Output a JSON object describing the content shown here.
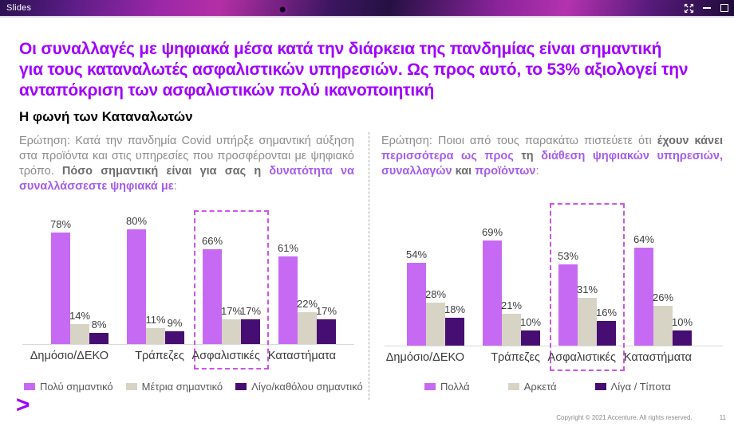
{
  "window": {
    "title": "Slides",
    "controls": {
      "expand": "expand",
      "minimize": "minimize",
      "maximize": "maximize"
    }
  },
  "slide": {
    "heading_lines": [
      "Οι συναλλαγές με ψηφιακά μέσα κατά την διάρκεια της πανδημίας είναι σημαντική",
      "για τους καταναλωτές ασφαλιστικών υπηρεσιών. Ως προς αυτό, το 53% αξιολογεί την",
      "ανταπόκριση των ασφαλιστικών πολύ ικανοποιητική"
    ],
    "subtitle": "Η φωνή των Καταναλωτών"
  },
  "left_panel": {
    "question_segments": [
      {
        "t": "Ερώτηση: Κατά την πανδημία Covid υπήρξε σημαντική αύξηση στα προϊόντα και στις υπηρεσίες που προσφέρονται με ψηφιακό τρόπο. ",
        "s": "n"
      },
      {
        "t": "Πόσο σημαντική είναι για σας η ",
        "s": "b"
      },
      {
        "t": "δυνατότητα να συναλλάσσεστε ψηφιακά με",
        "s": "p"
      },
      {
        "t": ":",
        "s": "n"
      }
    ]
  },
  "right_panel": {
    "question_segments": [
      {
        "t": "Ερώτηση: Ποιοι από τους παρακάτω πιστεύετε ότι ",
        "s": "n"
      },
      {
        "t": "έχουν κάνει ",
        "s": "b"
      },
      {
        "t": "περισσότερα ως προς ",
        "s": "p"
      },
      {
        "t": "τη ",
        "s": "b"
      },
      {
        "t": "διάθεση ψηφιακών υπηρεσιών, συναλλαγών ",
        "s": "p"
      },
      {
        "t": "και ",
        "s": "b"
      },
      {
        "t": "προϊόντων",
        "s": "p"
      },
      {
        "t": ":",
        "s": "n"
      }
    ]
  },
  "chart_data": [
    {
      "type": "bar",
      "title": "Σημαντικότητα ψηφιακών συναλλαγών ανά κλάδο",
      "categories": [
        "Δημόσιο/ΔΕΚΟ",
        "Τράπεζες",
        "Ασφαλιστικές",
        "Καταστήματα"
      ],
      "series": [
        {
          "name": "Πολύ σημαντικό",
          "values": [
            78,
            80,
            66,
            61
          ]
        },
        {
          "name": "Μέτρια σημαντικό",
          "values": [
            14,
            11,
            17,
            22
          ]
        },
        {
          "name": "Λίγο/καθόλου σημαντικό",
          "values": [
            8,
            9,
            17,
            17
          ]
        }
      ],
      "unit": "%",
      "ylim": [
        0,
        100
      ],
      "grid": false,
      "value_labels": true,
      "legend_position": "bottom",
      "highlight_category": "Ασφαλιστικές"
    },
    {
      "type": "bar",
      "title": "Ποιοι έχουν κάνει περισσότερα στη διάθεση ψηφιακών υπηρεσιών",
      "categories": [
        "Δημόσιο/ΔΕΚΟ",
        "Τράπεζες",
        "Ασφαλιστικές",
        "Καταστήματα"
      ],
      "series": [
        {
          "name": "Πολλά",
          "values": [
            54,
            69,
            53,
            64
          ]
        },
        {
          "name": "Αρκετά",
          "values": [
            28,
            21,
            31,
            26
          ]
        },
        {
          "name": "Λίγα / Τίποτα",
          "values": [
            18,
            10,
            16,
            10
          ]
        }
      ],
      "unit": "%",
      "ylim": [
        0,
        100
      ],
      "grid": false,
      "value_labels": true,
      "legend_position": "bottom",
      "highlight_category": "Ασφαλιστικές"
    }
  ],
  "footer": {
    "logo_glyph": ">",
    "copyright": "Copyright © 2021 Accenture. All rights reserved.",
    "page_number": "11"
  },
  "colors": {
    "accent_purple": "#a100ff",
    "bar_primary": "#c76af3",
    "bar_secondary": "#d8d4c5",
    "bar_tertiary": "#460d72",
    "question_purple": "#a55ceb",
    "highlight_border": "#cd54ea"
  }
}
